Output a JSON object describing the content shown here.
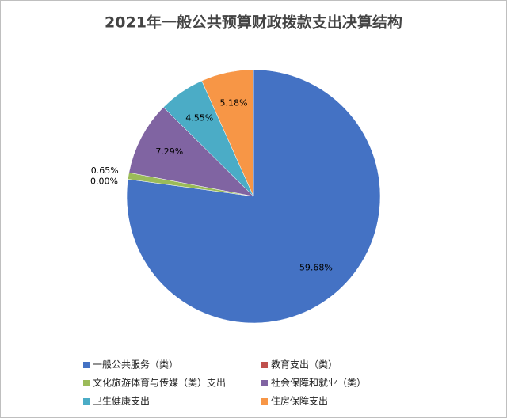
{
  "chart_data": {
    "type": "pie",
    "title": "2021年一般公共预算财政拨款支出决算结构",
    "categories": [
      "一般公共服务（类）",
      "教育支出（类）",
      "文化旅游体育与传媒（类）支出",
      "社会保障和就业（类）",
      "卫生健康支出",
      "住房保障支出"
    ],
    "values": [
      59.68,
      0.0,
      0.65,
      7.29,
      4.55,
      5.18
    ],
    "value_labels": [
      "59.68%",
      "0.00%",
      "0.65%",
      "7.29%",
      "4.55%",
      "5.18%"
    ],
    "colors": [
      "#4472c4",
      "#c0504d",
      "#9bbb59",
      "#8064a2",
      "#4bacc6",
      "#f79646"
    ],
    "legend": "bottom"
  }
}
